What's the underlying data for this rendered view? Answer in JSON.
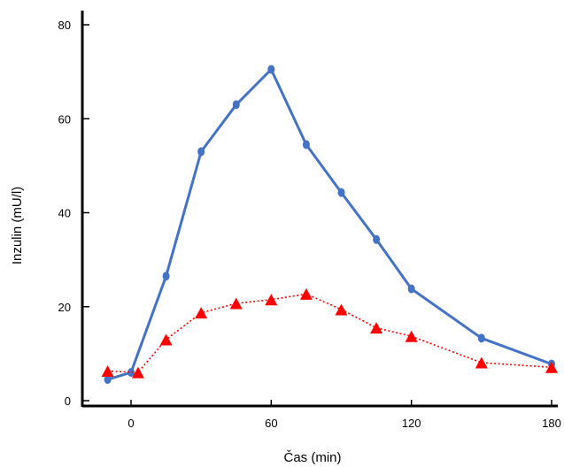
{
  "chart_data": {
    "type": "line",
    "title": "",
    "xlabel": "Čas (min)",
    "ylabel": "Inzulin (mU/l)",
    "xlim": [
      -20,
      185
    ],
    "ylim": [
      0,
      80
    ],
    "xticks": [
      0,
      60,
      120,
      180
    ],
    "yticks": [
      0,
      20,
      40,
      60,
      80
    ],
    "grid": false,
    "legend": "none",
    "series": [
      {
        "color": "#4472C4",
        "line_style": "solid",
        "marker": "circle",
        "points": [
          {
            "x": -10,
            "y": 4.5
          },
          {
            "x": 0,
            "y": 6
          },
          {
            "x": 15,
            "y": 26.5
          },
          {
            "x": 30,
            "y": 53
          },
          {
            "x": 45,
            "y": 63
          },
          {
            "x": 60,
            "y": 70.5
          },
          {
            "x": 75,
            "y": 54.5
          },
          {
            "x": 90,
            "y": 44.3
          },
          {
            "x": 105,
            "y": 34.3
          },
          {
            "x": 120,
            "y": 23.8
          },
          {
            "x": 150,
            "y": 13.3
          },
          {
            "x": 180,
            "y": 7.8
          }
        ]
      },
      {
        "color": "#FF0000",
        "line_style": "dotted",
        "marker": "triangle",
        "points": [
          {
            "x": -10,
            "y": 6.3
          },
          {
            "x": 3,
            "y": 6
          },
          {
            "x": 15,
            "y": 13
          },
          {
            "x": 30,
            "y": 18.7
          },
          {
            "x": 45,
            "y": 20.7
          },
          {
            "x": 60,
            "y": 21.5
          },
          {
            "x": 75,
            "y": 22.7
          },
          {
            "x": 90,
            "y": 19.4
          },
          {
            "x": 105,
            "y": 15.5
          },
          {
            "x": 120,
            "y": 13.7
          },
          {
            "x": 150,
            "y": 8.1
          },
          {
            "x": 180,
            "y": 7.1
          }
        ]
      }
    ]
  }
}
